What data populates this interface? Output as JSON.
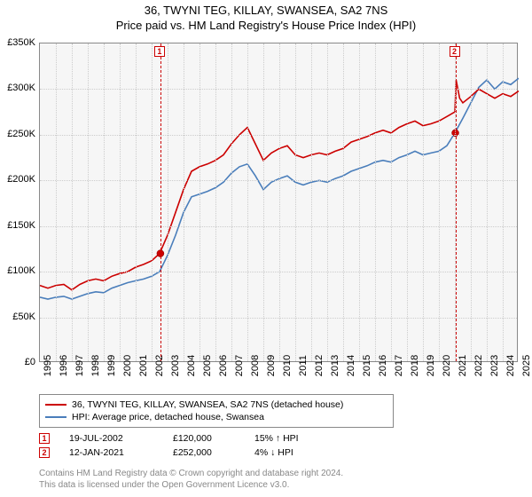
{
  "title": "36, TWYNI TEG, KILLAY, SWANSEA, SA2 7NS",
  "subtitle": "Price paid vs. HM Land Registry's House Price Index (HPI)",
  "chart": {
    "type": "line",
    "background_color": "#f6f6f6",
    "grid_color": "#cccccc",
    "border_color": "#888888",
    "ylim": [
      0,
      350000
    ],
    "ytick_step": 50000,
    "yticks": [
      "£0",
      "£50K",
      "£100K",
      "£150K",
      "£200K",
      "£250K",
      "£300K",
      "£350K"
    ],
    "xlim": [
      1995,
      2025
    ],
    "xticks": [
      "1995",
      "1996",
      "1997",
      "1998",
      "1999",
      "2000",
      "2001",
      "2002",
      "2003",
      "2004",
      "2005",
      "2006",
      "2007",
      "2008",
      "2009",
      "2010",
      "2011",
      "2012",
      "2013",
      "2014",
      "2015",
      "2016",
      "2017",
      "2018",
      "2019",
      "2020",
      "2021",
      "2022",
      "2023",
      "2024",
      "2025"
    ],
    "series": [
      {
        "id": "property",
        "label": "36, TWYNI TEG, KILLAY, SWANSEA, SA2 7NS (detached house)",
        "color": "#cc0000",
        "points": [
          [
            1995,
            85000
          ],
          [
            1995.5,
            82000
          ],
          [
            1996,
            85000
          ],
          [
            1996.5,
            86000
          ],
          [
            1997,
            80000
          ],
          [
            1997.5,
            86000
          ],
          [
            1998,
            90000
          ],
          [
            1998.5,
            92000
          ],
          [
            1999,
            90000
          ],
          [
            1999.5,
            95000
          ],
          [
            2000,
            98000
          ],
          [
            2000.5,
            100000
          ],
          [
            2001,
            105000
          ],
          [
            2001.5,
            108000
          ],
          [
            2002,
            112000
          ],
          [
            2002.5,
            120000
          ],
          [
            2003,
            140000
          ],
          [
            2003.5,
            165000
          ],
          [
            2004,
            190000
          ],
          [
            2004.5,
            210000
          ],
          [
            2005,
            215000
          ],
          [
            2005.5,
            218000
          ],
          [
            2006,
            222000
          ],
          [
            2006.5,
            228000
          ],
          [
            2007,
            240000
          ],
          [
            2007.5,
            250000
          ],
          [
            2008,
            258000
          ],
          [
            2008.5,
            240000
          ],
          [
            2009,
            222000
          ],
          [
            2009.5,
            230000
          ],
          [
            2010,
            235000
          ],
          [
            2010.5,
            238000
          ],
          [
            2011,
            228000
          ],
          [
            2011.5,
            225000
          ],
          [
            2012,
            228000
          ],
          [
            2012.5,
            230000
          ],
          [
            2013,
            228000
          ],
          [
            2013.5,
            232000
          ],
          [
            2014,
            235000
          ],
          [
            2014.5,
            242000
          ],
          [
            2015,
            245000
          ],
          [
            2015.5,
            248000
          ],
          [
            2016,
            252000
          ],
          [
            2016.5,
            255000
          ],
          [
            2017,
            252000
          ],
          [
            2017.5,
            258000
          ],
          [
            2018,
            262000
          ],
          [
            2018.5,
            265000
          ],
          [
            2019,
            260000
          ],
          [
            2019.5,
            262000
          ],
          [
            2020,
            265000
          ],
          [
            2020.5,
            270000
          ],
          [
            2021,
            275000
          ],
          [
            2021.08,
            310000
          ],
          [
            2021.3,
            290000
          ],
          [
            2021.5,
            285000
          ],
          [
            2022,
            292000
          ],
          [
            2022.5,
            300000
          ],
          [
            2023,
            295000
          ],
          [
            2023.5,
            290000
          ],
          [
            2024,
            295000
          ],
          [
            2024.5,
            292000
          ],
          [
            2025,
            298000
          ]
        ]
      },
      {
        "id": "hpi",
        "label": "HPI: Average price, detached house, Swansea",
        "color": "#4a7ebb",
        "points": [
          [
            1995,
            72000
          ],
          [
            1995.5,
            70000
          ],
          [
            1996,
            72000
          ],
          [
            1996.5,
            73000
          ],
          [
            1997,
            70000
          ],
          [
            1997.5,
            73000
          ],
          [
            1998,
            76000
          ],
          [
            1998.5,
            78000
          ],
          [
            1999,
            77000
          ],
          [
            1999.5,
            82000
          ],
          [
            2000,
            85000
          ],
          [
            2000.5,
            88000
          ],
          [
            2001,
            90000
          ],
          [
            2001.5,
            92000
          ],
          [
            2002,
            95000
          ],
          [
            2002.5,
            100000
          ],
          [
            2003,
            118000
          ],
          [
            2003.5,
            140000
          ],
          [
            2004,
            165000
          ],
          [
            2004.5,
            182000
          ],
          [
            2005,
            185000
          ],
          [
            2005.5,
            188000
          ],
          [
            2006,
            192000
          ],
          [
            2006.5,
            198000
          ],
          [
            2007,
            208000
          ],
          [
            2007.5,
            215000
          ],
          [
            2008,
            218000
          ],
          [
            2008.5,
            205000
          ],
          [
            2009,
            190000
          ],
          [
            2009.5,
            198000
          ],
          [
            2010,
            202000
          ],
          [
            2010.5,
            205000
          ],
          [
            2011,
            198000
          ],
          [
            2011.5,
            195000
          ],
          [
            2012,
            198000
          ],
          [
            2012.5,
            200000
          ],
          [
            2013,
            198000
          ],
          [
            2013.5,
            202000
          ],
          [
            2014,
            205000
          ],
          [
            2014.5,
            210000
          ],
          [
            2015,
            213000
          ],
          [
            2015.5,
            216000
          ],
          [
            2016,
            220000
          ],
          [
            2016.5,
            222000
          ],
          [
            2017,
            220000
          ],
          [
            2017.5,
            225000
          ],
          [
            2018,
            228000
          ],
          [
            2018.5,
            232000
          ],
          [
            2019,
            228000
          ],
          [
            2019.5,
            230000
          ],
          [
            2020,
            232000
          ],
          [
            2020.5,
            238000
          ],
          [
            2021,
            252000
          ],
          [
            2021.5,
            268000
          ],
          [
            2022,
            285000
          ],
          [
            2022.5,
            302000
          ],
          [
            2023,
            310000
          ],
          [
            2023.5,
            300000
          ],
          [
            2024,
            308000
          ],
          [
            2024.5,
            305000
          ],
          [
            2025,
            312000
          ]
        ]
      }
    ],
    "sale_markers": [
      {
        "n": "1",
        "x": 2002.55,
        "y": 120000
      },
      {
        "n": "2",
        "x": 2021.03,
        "y": 252000
      }
    ]
  },
  "transactions": [
    {
      "n": "1",
      "date": "19-JUL-2002",
      "price": "£120,000",
      "delta": "15% ↑ HPI"
    },
    {
      "n": "2",
      "date": "12-JAN-2021",
      "price": "£252,000",
      "delta": "4% ↓ HPI"
    }
  ],
  "footer_line1": "Contains HM Land Registry data © Crown copyright and database right 2024.",
  "footer_line2": "This data is licensed under the Open Government Licence v3.0."
}
